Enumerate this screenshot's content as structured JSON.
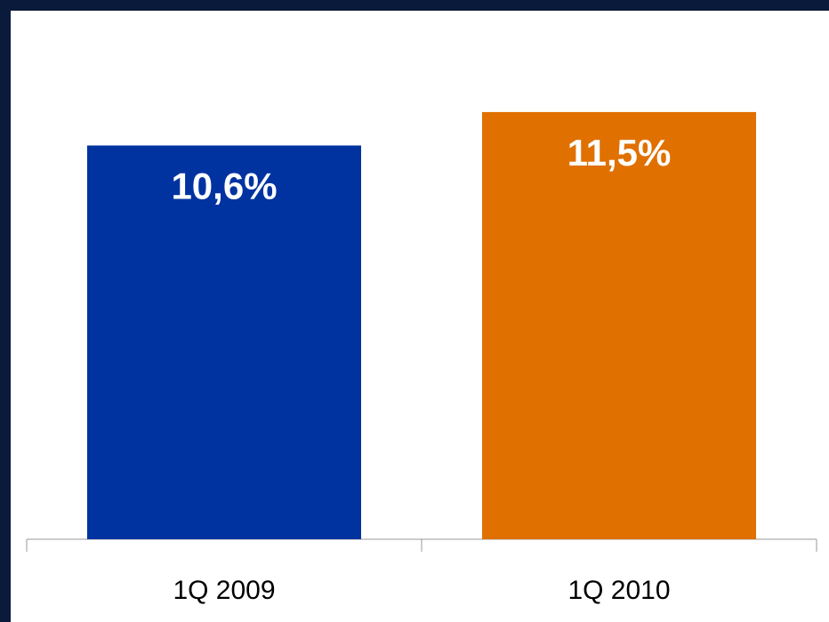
{
  "chart_data": {
    "type": "bar",
    "categories": [
      "1Q 2009",
      "1Q 2010"
    ],
    "values": [
      10.6,
      11.5
    ],
    "value_labels": [
      "10,6%",
      "11,5%"
    ],
    "colors": [
      "#0033a0",
      "#e07000"
    ],
    "ylim": [
      0,
      12.6
    ],
    "grid": false,
    "legend": "none"
  },
  "colors": {
    "frame": "#0a1a3a",
    "background": "#ffffff",
    "axis": "#999999"
  }
}
